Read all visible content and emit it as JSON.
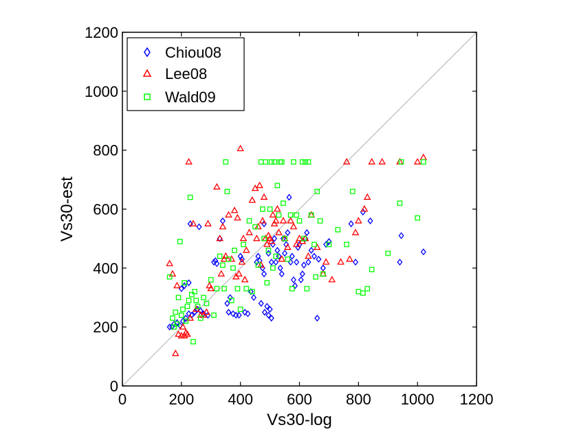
{
  "chart_data": {
    "type": "scatter",
    "title": "",
    "xlabel": "Vs30-log",
    "ylabel": "Vs30-est",
    "xlim": [
      0,
      1200
    ],
    "ylim": [
      0,
      1200
    ],
    "xticks": [
      "0",
      "200",
      "400",
      "600",
      "800",
      "1000",
      "1200"
    ],
    "yticks": [
      "0",
      "200",
      "400",
      "600",
      "800",
      "1000",
      "1200"
    ],
    "grid": false,
    "legend_position": "top-left",
    "reference_line": {
      "from": [
        0,
        0
      ],
      "to": [
        1200,
        1200
      ],
      "color": "#b0b0b0"
    },
    "series": [
      {
        "name": "Chiou08",
        "marker": "diamond",
        "color": "#0000ff",
        "points": [
          [
            160,
            200
          ],
          [
            168,
            201
          ],
          [
            175,
            210
          ],
          [
            185,
            215
          ],
          [
            195,
            205
          ],
          [
            205,
            220
          ],
          [
            215,
            230
          ],
          [
            225,
            245
          ],
          [
            235,
            240
          ],
          [
            245,
            250
          ],
          [
            255,
            260
          ],
          [
            265,
            255
          ],
          [
            275,
            245
          ],
          [
            290,
            240
          ],
          [
            200,
            330
          ],
          [
            210,
            340
          ],
          [
            225,
            350
          ],
          [
            230,
            550
          ],
          [
            260,
            540
          ],
          [
            310,
            420
          ],
          [
            315,
            425
          ],
          [
            320,
            415
          ],
          [
            330,
            500
          ],
          [
            340,
            560
          ],
          [
            355,
            280
          ],
          [
            360,
            250
          ],
          [
            365,
            300
          ],
          [
            375,
            245
          ],
          [
            385,
            240
          ],
          [
            395,
            240
          ],
          [
            400,
            440
          ],
          [
            405,
            430
          ],
          [
            415,
            250
          ],
          [
            425,
            245
          ],
          [
            435,
            320
          ],
          [
            445,
            300
          ],
          [
            455,
            420
          ],
          [
            460,
            440
          ],
          [
            465,
            425
          ],
          [
            470,
            280
          ],
          [
            475,
            400
          ],
          [
            480,
            550
          ],
          [
            482,
            250
          ],
          [
            490,
            270
          ],
          [
            495,
            240
          ],
          [
            500,
            260
          ],
          [
            505,
            230
          ],
          [
            510,
            480
          ],
          [
            515,
            500
          ],
          [
            520,
            420
          ],
          [
            525,
            460
          ],
          [
            530,
            440
          ],
          [
            535,
            400
          ],
          [
            540,
            380
          ],
          [
            545,
            500
          ],
          [
            550,
            450
          ],
          [
            555,
            480
          ],
          [
            560,
            520
          ],
          [
            565,
            640
          ],
          [
            570,
            420
          ],
          [
            575,
            440
          ],
          [
            580,
            360
          ],
          [
            585,
            340
          ],
          [
            590,
            420
          ],
          [
            595,
            470
          ],
          [
            600,
            480
          ],
          [
            605,
            360
          ],
          [
            610,
            380
          ],
          [
            615,
            410
          ],
          [
            620,
            500
          ],
          [
            625,
            520
          ],
          [
            630,
            420
          ],
          [
            640,
            460
          ],
          [
            650,
            440
          ],
          [
            660,
            230
          ],
          [
            665,
            430
          ],
          [
            680,
            400
          ],
          [
            690,
            480
          ],
          [
            700,
            490
          ],
          [
            775,
            550
          ],
          [
            790,
            420
          ],
          [
            815,
            590
          ],
          [
            840,
            560
          ],
          [
            940,
            420
          ],
          [
            945,
            510
          ],
          [
            1020,
            455
          ],
          [
            480,
            380
          ],
          [
            495,
            450
          ],
          [
            505,
            420
          ]
        ]
      },
      {
        "name": "Lee08",
        "marker": "triangle",
        "color": "#ff0000",
        "points": [
          [
            160,
            415
          ],
          [
            170,
            380
          ],
          [
            180,
            110
          ],
          [
            185,
            340
          ],
          [
            190,
            175
          ],
          [
            200,
            170
          ],
          [
            205,
            200
          ],
          [
            210,
            170
          ],
          [
            215,
            180
          ],
          [
            220,
            175
          ],
          [
            225,
            760
          ],
          [
            230,
            230
          ],
          [
            240,
            550
          ],
          [
            250,
            260
          ],
          [
            265,
            240
          ],
          [
            275,
            240
          ],
          [
            285,
            250
          ],
          [
            290,
            550
          ],
          [
            295,
            340
          ],
          [
            300,
            330
          ],
          [
            320,
            675
          ],
          [
            330,
            500
          ],
          [
            335,
            380
          ],
          [
            340,
            540
          ],
          [
            345,
            430
          ],
          [
            350,
            440
          ],
          [
            360,
            580
          ],
          [
            370,
            430
          ],
          [
            380,
            595
          ],
          [
            385,
            370
          ],
          [
            390,
            570
          ],
          [
            395,
            380
          ],
          [
            400,
            805
          ],
          [
            405,
            420
          ],
          [
            410,
            500
          ],
          [
            415,
            360
          ],
          [
            420,
            460
          ],
          [
            430,
            520
          ],
          [
            440,
            630
          ],
          [
            450,
            670
          ],
          [
            455,
            500
          ],
          [
            460,
            540
          ],
          [
            465,
            680
          ],
          [
            470,
            410
          ],
          [
            475,
            560
          ],
          [
            480,
            640
          ],
          [
            485,
            500
          ],
          [
            490,
            480
          ],
          [
            495,
            510
          ],
          [
            500,
            500
          ],
          [
            505,
            490
          ],
          [
            510,
            580
          ],
          [
            515,
            550
          ],
          [
            520,
            560
          ],
          [
            525,
            600
          ],
          [
            530,
            520
          ],
          [
            540,
            430
          ],
          [
            545,
            560
          ],
          [
            550,
            500
          ],
          [
            560,
            470
          ],
          [
            570,
            560
          ],
          [
            580,
            540
          ],
          [
            590,
            480
          ],
          [
            600,
            500
          ],
          [
            610,
            490
          ],
          [
            620,
            500
          ],
          [
            630,
            440
          ],
          [
            640,
            580
          ],
          [
            660,
            470
          ],
          [
            680,
            380
          ],
          [
            690,
            420
          ],
          [
            710,
            360
          ],
          [
            740,
            420
          ],
          [
            760,
            760
          ],
          [
            770,
            430
          ],
          [
            790,
            520
          ],
          [
            800,
            560
          ],
          [
            820,
            600
          ],
          [
            830,
            640
          ],
          [
            845,
            760
          ],
          [
            880,
            760
          ],
          [
            940,
            760
          ],
          [
            1000,
            760
          ],
          [
            1020,
            775
          ]
        ]
      },
      {
        "name": "Wald09",
        "marker": "square",
        "color": "#00ff00",
        "points": [
          [
            160,
            370
          ],
          [
            170,
            230
          ],
          [
            175,
            200
          ],
          [
            180,
            250
          ],
          [
            185,
            210
          ],
          [
            190,
            300
          ],
          [
            195,
            490
          ],
          [
            200,
            240
          ],
          [
            205,
            260
          ],
          [
            210,
            350
          ],
          [
            215,
            220
          ],
          [
            220,
            270
          ],
          [
            225,
            290
          ],
          [
            230,
            640
          ],
          [
            235,
            310
          ],
          [
            240,
            150
          ],
          [
            245,
            320
          ],
          [
            250,
            290
          ],
          [
            255,
            270
          ],
          [
            265,
            230
          ],
          [
            275,
            300
          ],
          [
            285,
            280
          ],
          [
            300,
            360
          ],
          [
            310,
            240
          ],
          [
            320,
            330
          ],
          [
            330,
            440
          ],
          [
            340,
            410
          ],
          [
            345,
            330
          ],
          [
            350,
            760
          ],
          [
            355,
            660
          ],
          [
            360,
            430
          ],
          [
            370,
            290
          ],
          [
            375,
            400
          ],
          [
            380,
            460
          ],
          [
            390,
            330
          ],
          [
            400,
            260
          ],
          [
            410,
            480
          ],
          [
            420,
            330
          ],
          [
            430,
            560
          ],
          [
            440,
            320
          ],
          [
            450,
            540
          ],
          [
            460,
            410
          ],
          [
            470,
            760
          ],
          [
            475,
            600
          ],
          [
            480,
            500
          ],
          [
            485,
            760
          ],
          [
            490,
            350
          ],
          [
            495,
            460
          ],
          [
            500,
            600
          ],
          [
            505,
            760
          ],
          [
            510,
            400
          ],
          [
            515,
            760
          ],
          [
            520,
            440
          ],
          [
            525,
            680
          ],
          [
            530,
            580
          ],
          [
            535,
            760
          ],
          [
            540,
            760
          ],
          [
            545,
            620
          ],
          [
            550,
            500
          ],
          [
            560,
            430
          ],
          [
            570,
            580
          ],
          [
            575,
            330
          ],
          [
            580,
            760
          ],
          [
            590,
            580
          ],
          [
            600,
            560
          ],
          [
            610,
            760
          ],
          [
            615,
            500
          ],
          [
            620,
            760
          ],
          [
            625,
            330
          ],
          [
            630,
            760
          ],
          [
            640,
            580
          ],
          [
            650,
            480
          ],
          [
            655,
            370
          ],
          [
            660,
            660
          ],
          [
            670,
            560
          ],
          [
            680,
            380
          ],
          [
            700,
            480
          ],
          [
            730,
            530
          ],
          [
            760,
            480
          ],
          [
            780,
            660
          ],
          [
            800,
            320
          ],
          [
            815,
            315
          ],
          [
            830,
            330
          ],
          [
            845,
            395
          ],
          [
            900,
            450
          ],
          [
            940,
            620
          ],
          [
            945,
            760
          ],
          [
            1000,
            570
          ],
          [
            1020,
            760
          ]
        ]
      }
    ]
  },
  "icons": {
    "chiou08": "blue-diamond-marker-icon",
    "lee08": "red-triangle-marker-icon",
    "wald09": "green-square-marker-icon"
  }
}
